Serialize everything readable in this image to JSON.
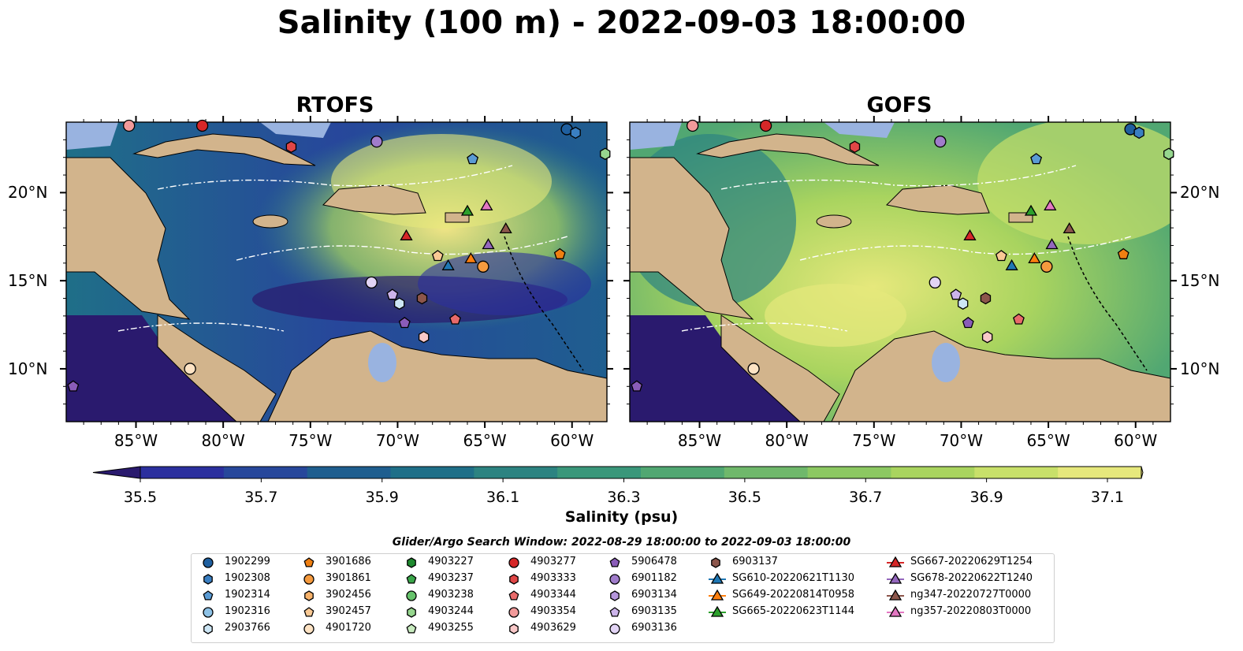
{
  "title": "Salinity (100 m) - 2022-09-03 18:00:00",
  "panels": [
    {
      "title": "RTOFS",
      "fields": "rtofs"
    },
    {
      "title": "GOFS",
      "fields": "gofs"
    }
  ],
  "map": {
    "lon_range": [
      -89,
      -58
    ],
    "lat_range": [
      7,
      24
    ],
    "lon_ticks": [
      "85°W",
      "80°W",
      "75°W",
      "70°W",
      "65°W",
      "60°W"
    ],
    "lat_ticks": [
      "20°N",
      "15°N",
      "10°N"
    ],
    "land_color": "#d2b48c",
    "shelf_color": "#99b3e0"
  },
  "colorbar": {
    "label": "Salinity (psu)",
    "ticks": [
      "35.5",
      "35.7",
      "35.9",
      "36.1",
      "36.3",
      "36.5",
      "36.7",
      "36.9",
      "37.1"
    ],
    "range": [
      35.5,
      37.1
    ],
    "colors": [
      "#2a1a6e",
      "#2b2f9e",
      "#27479b",
      "#1f5e8f",
      "#1f6f88",
      "#2c8381",
      "#3a977a",
      "#51a772",
      "#6fb86b",
      "#8cc862",
      "#a9d45f",
      "#c8e06a",
      "#e6e87c",
      "#f7e88a"
    ]
  },
  "window_text": "Glider/Argo Search Window: 2022-08-29 18:00:00 to 2022-09-03 18:00:00",
  "legend": [
    {
      "label": "1902299",
      "marker": "circle",
      "color": "#1f5f9f"
    },
    {
      "label": "1902308",
      "marker": "hexagon",
      "color": "#3a7fc2"
    },
    {
      "label": "1902314",
      "marker": "pentagon",
      "color": "#5a9bd4"
    },
    {
      "label": "1902316",
      "marker": "circle",
      "color": "#8ec2e6"
    },
    {
      "label": "2903766",
      "marker": "hexagon",
      "color": "#cde6f5"
    },
    {
      "label": "3901686",
      "marker": "pentagon",
      "color": "#ef7f11"
    },
    {
      "label": "3901861",
      "marker": "circle",
      "color": "#f59a3e"
    },
    {
      "label": "3902456",
      "marker": "hexagon",
      "color": "#f7b26a"
    },
    {
      "label": "3902457",
      "marker": "pentagon",
      "color": "#f9c994"
    },
    {
      "label": "4901720",
      "marker": "circle",
      "color": "#fde3c4"
    },
    {
      "label": "4903227",
      "marker": "hexagon",
      "color": "#1f8a2f"
    },
    {
      "label": "4903237",
      "marker": "pentagon",
      "color": "#3aa64a"
    },
    {
      "label": "4903238",
      "marker": "circle",
      "color": "#66c26b"
    },
    {
      "label": "4903244",
      "marker": "hexagon",
      "color": "#96d68e"
    },
    {
      "label": "4903255",
      "marker": "pentagon",
      "color": "#c8ebbf"
    },
    {
      "label": "4903277",
      "marker": "circle",
      "color": "#d62728"
    },
    {
      "label": "4903333",
      "marker": "hexagon",
      "color": "#e04646"
    },
    {
      "label": "4903344",
      "marker": "pentagon",
      "color": "#e86a6a"
    },
    {
      "label": "4903354",
      "marker": "circle",
      "color": "#f29a9a"
    },
    {
      "label": "4903629",
      "marker": "hexagon",
      "color": "#f9c8c8"
    },
    {
      "label": "5906478",
      "marker": "pentagon",
      "color": "#8a5cb8"
    },
    {
      "label": "6901182",
      "marker": "circle",
      "color": "#a07ccb"
    },
    {
      "label": "6903134",
      "marker": "hexagon",
      "color": "#b596dc"
    },
    {
      "label": "6903135",
      "marker": "pentagon",
      "color": "#ccb4ea"
    },
    {
      "label": "6903136",
      "marker": "circle",
      "color": "#e2d4f5"
    },
    {
      "label": "6903137",
      "marker": "hexagon",
      "color": "#8c564b"
    },
    {
      "label": "SG610-20220621T1130",
      "marker": "triangle",
      "color": "#1f77b4"
    },
    {
      "label": "SG649-20220814T0958",
      "marker": "triangle",
      "color": "#ff7f0e"
    },
    {
      "label": "SG665-20220623T1144",
      "marker": "triangle",
      "color": "#2ca02c"
    },
    {
      "label": "SG667-20220629T1254",
      "marker": "triangle",
      "color": "#d62728"
    },
    {
      "label": "SG678-20220622T1240",
      "marker": "triangle",
      "color": "#9467bd"
    },
    {
      "label": "ng347-20220727T0000",
      "marker": "triangle",
      "color": "#8c564b"
    },
    {
      "label": "ng357-20220803T0000",
      "marker": "triangle",
      "color": "#e377c2"
    }
  ],
  "stations": [
    {
      "id": "1902299",
      "lon": -60.3,
      "lat": 23.6
    },
    {
      "id": "1902308",
      "lon": -59.8,
      "lat": 23.4
    },
    {
      "id": "1902314",
      "lon": -65.7,
      "lat": 21.9
    },
    {
      "id": "5906478",
      "lon": -88.6,
      "lat": 9.0
    },
    {
      "id": "4903277",
      "lon": -81.2,
      "lat": 23.8
    },
    {
      "id": "4903333",
      "lon": -76.1,
      "lat": 22.6
    },
    {
      "id": "6901182",
      "lon": -71.2,
      "lat": 22.9
    },
    {
      "id": "4903244",
      "lon": -58.1,
      "lat": 22.2
    },
    {
      "id": "4903354",
      "lon": -85.4,
      "lat": 23.8
    },
    {
      "id": "SG665-20220623T1144",
      "lon": -66.0,
      "lat": 18.9
    },
    {
      "id": "ng357-20220803T0000",
      "lon": -64.9,
      "lat": 19.2
    },
    {
      "id": "SG667-20220629T1254",
      "lon": -69.5,
      "lat": 17.5
    },
    {
      "id": "ng347-20220727T0000",
      "lon": -63.8,
      "lat": 17.9
    },
    {
      "id": "SG678-20220622T1240",
      "lon": -64.8,
      "lat": 17.0
    },
    {
      "id": "3902457",
      "lon": -67.7,
      "lat": 16.4
    },
    {
      "id": "SG649-20220814T0958",
      "lon": -65.8,
      "lat": 16.2
    },
    {
      "id": "SG610-20220621T1130",
      "lon": -67.1,
      "lat": 15.8
    },
    {
      "id": "3901861",
      "lon": -65.1,
      "lat": 15.8
    },
    {
      "id": "3901686",
      "lon": -60.7,
      "lat": 16.5
    },
    {
      "id": "6903136",
      "lon": -71.5,
      "lat": 14.9
    },
    {
      "id": "6903135",
      "lon": -70.3,
      "lat": 14.2
    },
    {
      "id": "2903766",
      "lon": -69.9,
      "lat": 13.7
    },
    {
      "id": "6903137",
      "lon": -68.6,
      "lat": 14.0
    },
    {
      "id": "5906478b",
      "lon": -69.6,
      "lat": 12.6
    },
    {
      "id": "4903344",
      "lon": -66.7,
      "lat": 12.8
    },
    {
      "id": "4903629",
      "lon": -68.5,
      "lat": 11.8
    },
    {
      "id": "4901720",
      "lon": -81.9,
      "lat": 10.0
    }
  ]
}
